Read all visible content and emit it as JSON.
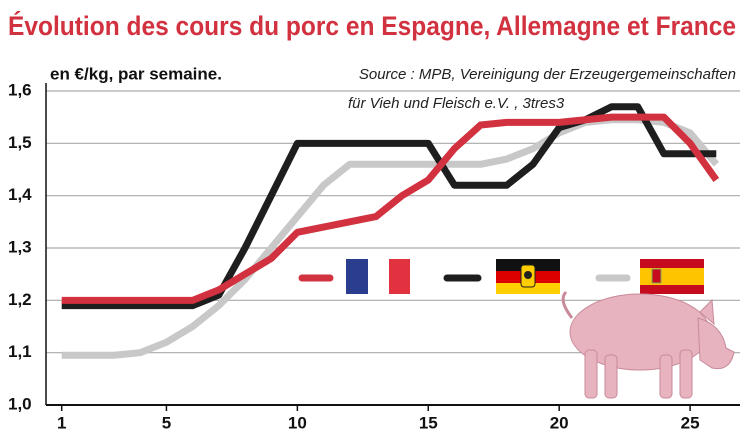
{
  "chart_data": {
    "type": "line",
    "title": "Évolution des cours du porc en Espagne, Allemagne et France",
    "subtitle": "en €/kg, par semaine.",
    "source": [
      "Source : MPB, Vereinigung der Erzeugergemeinschaften",
      "für Vieh und Fleisch e.V. , 3tres3"
    ],
    "x": [
      1,
      2,
      3,
      4,
      5,
      6,
      7,
      8,
      9,
      10,
      11,
      12,
      13,
      14,
      15,
      16,
      17,
      18,
      19,
      20,
      21,
      22,
      23,
      24,
      25,
      26
    ],
    "xlim": [
      0.4,
      26.6
    ],
    "xticks": [
      1,
      5,
      10,
      15,
      20,
      25
    ],
    "ylim": [
      1.0,
      1.6
    ],
    "yticks": [
      {
        "value": 1.0,
        "label": "1,0"
      },
      {
        "value": 1.1,
        "label": "1,1"
      },
      {
        "value": 1.2,
        "label": "1,2"
      },
      {
        "value": 1.3,
        "label": "1,3"
      },
      {
        "value": 1.4,
        "label": "1,4"
      },
      {
        "value": 1.5,
        "label": "1,5"
      },
      {
        "value": 1.6,
        "label": "1,6"
      }
    ],
    "grid": true,
    "series": [
      {
        "color": "#d2313f",
        "values": [
          1.2,
          1.2,
          1.2,
          1.2,
          1.2,
          1.2,
          1.22,
          1.25,
          1.28,
          1.33,
          1.34,
          1.35,
          1.36,
          1.4,
          1.43,
          1.49,
          1.535,
          1.54,
          1.54,
          1.54,
          1.545,
          1.55,
          1.55,
          1.55,
          1.5,
          1.43
        ]
      },
      {
        "color": "#1e1e1e",
        "values": [
          1.19,
          1.19,
          1.19,
          1.19,
          1.19,
          1.19,
          1.21,
          1.3,
          1.4,
          1.5,
          1.5,
          1.5,
          1.5,
          1.5,
          1.5,
          1.42,
          1.42,
          1.42,
          1.46,
          1.53,
          1.545,
          1.57,
          1.57,
          1.48,
          1.48,
          1.48
        ]
      },
      {
        "color": "#c8c8c8",
        "values": [
          1.095,
          1.095,
          1.095,
          1.1,
          1.12,
          1.15,
          1.19,
          1.24,
          1.3,
          1.36,
          1.42,
          1.46,
          1.46,
          1.46,
          1.46,
          1.46,
          1.46,
          1.47,
          1.49,
          1.52,
          1.54,
          1.545,
          1.545,
          1.54,
          1.52,
          1.46
        ]
      }
    ]
  }
}
